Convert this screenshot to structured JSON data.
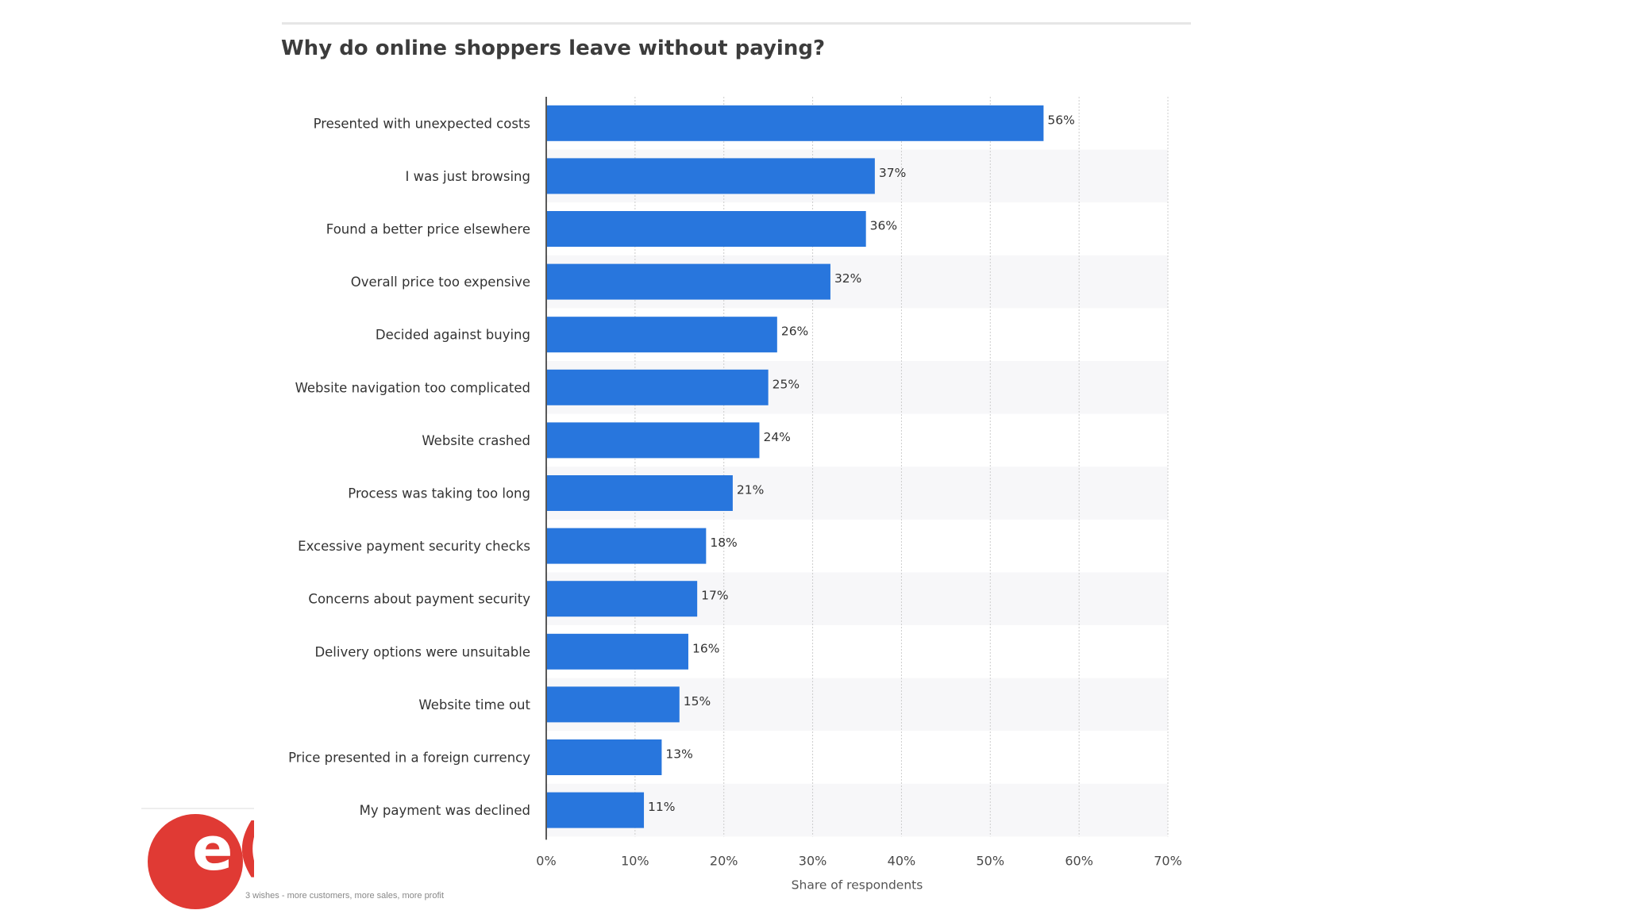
{
  "chart_data": {
    "type": "bar",
    "orientation": "horizontal",
    "title": "Why do online shoppers leave without paying?",
    "xlabel": "Share of respondents",
    "ylabel": "",
    "categories": [
      "Presented with unexpected costs",
      "I was just browsing",
      "Found a better price elsewhere",
      "Overall price too expensive",
      "Decided against buying",
      "Website navigation too complicated",
      "Website crashed",
      "Process was taking too long",
      "Excessive payment security checks",
      "Concerns about payment security",
      "Delivery options were unsuitable",
      "Website time out",
      "Price presented in a foreign currency",
      "My payment was declined"
    ],
    "values": [
      56,
      37,
      36,
      32,
      26,
      25,
      24,
      21,
      18,
      17,
      16,
      15,
      13,
      11
    ],
    "value_labels": [
      "56%",
      "37%",
      "36%",
      "32%",
      "26%",
      "25%",
      "24%",
      "21%",
      "18%",
      "17%",
      "16%",
      "15%",
      "13%",
      "11%"
    ],
    "xlim": [
      0,
      70
    ],
    "x_ticks": [
      0,
      10,
      20,
      30,
      40,
      50,
      60,
      70
    ],
    "x_tick_labels": [
      "0%",
      "10%",
      "20%",
      "30%",
      "40%",
      "50%",
      "60%",
      "70%"
    ],
    "grid": true,
    "legend": "none",
    "colors": {
      "bar": "#2876dd",
      "band": "#f7f7f9",
      "grid": "#cccccc",
      "axis": "#222222"
    }
  },
  "logo": {
    "name": "brand-logo",
    "color": "#e03a34",
    "letters": "e",
    "letters2": "("
  },
  "tagline": "3 wishes - more customers, more sales, more profit"
}
